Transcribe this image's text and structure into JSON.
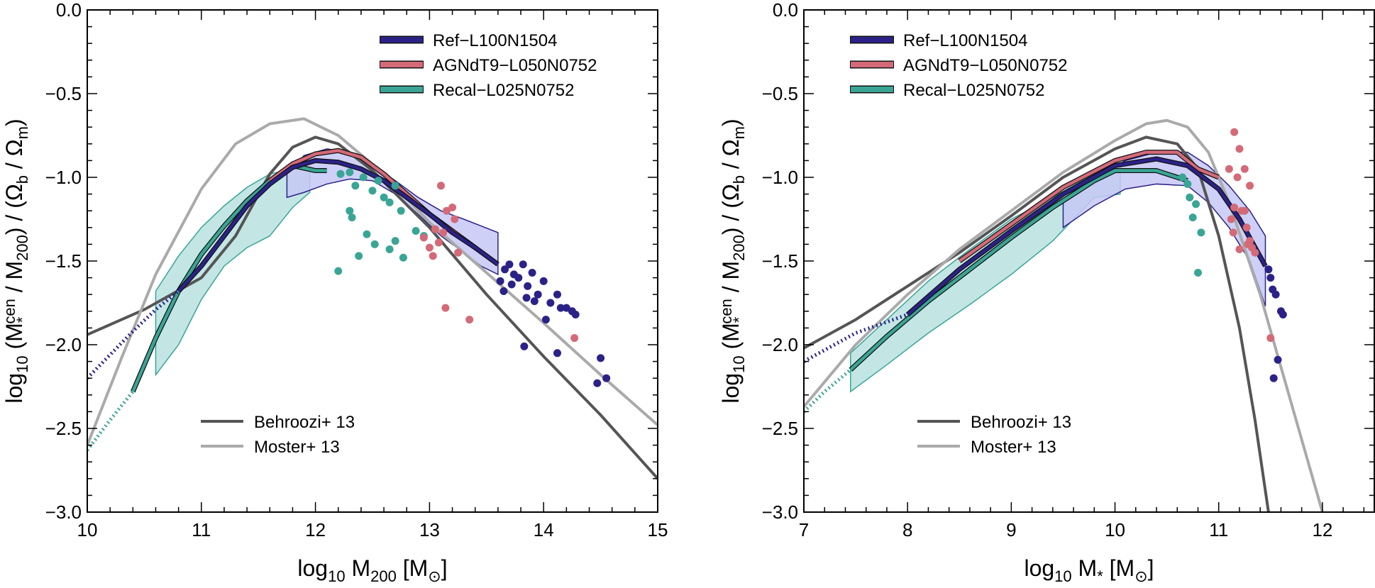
{
  "chart_data": [
    {
      "type": "line",
      "xlabel_parts": [
        "log",
        "10",
        " M",
        "200",
        " [M",
        "⊙",
        "]"
      ],
      "ylabel_parts": [
        "log",
        "10",
        " (M",
        "*",
        "cen",
        " / M",
        "200",
        ") / (Ω",
        "b",
        " / Ω",
        "m",
        ")"
      ],
      "xlim": [
        10,
        15
      ],
      "ylim": [
        -3.0,
        0.0
      ],
      "xticks": [
        10,
        11,
        12,
        13,
        14,
        15
      ],
      "xtick_labels": [
        "10",
        "11",
        "12",
        "13",
        "14",
        "15"
      ],
      "yticks": [
        0.0,
        -0.5,
        -1.0,
        -1.5,
        -2.0,
        -2.5,
        -3.0
      ],
      "ytick_labels": [
        "0.0",
        "−0.5",
        "−1.0",
        "−1.5",
        "−2.0",
        "−2.5",
        "−3.0"
      ],
      "legend_sims": [
        "Ref−L100N1504",
        "AGNdT9−L050N0752",
        "Recal−L025N0752"
      ],
      "legend_obs": [
        "Behroozi+ 13",
        "Moster+ 13"
      ],
      "colors": {
        "ref": "#2b2288",
        "agn": "#d46a78",
        "recal": "#3aa595",
        "ref_band": "#c6c8f6",
        "recal_band": "#b8e2e0",
        "behroozi": "#555555",
        "moster": "#aaaaaa"
      },
      "ref_band": {
        "x": [
          11.75,
          11.9,
          12.1,
          12.3,
          12.5,
          12.7,
          12.9,
          13.1,
          13.3,
          13.45,
          13.6
        ],
        "upper": [
          -0.98,
          -0.87,
          -0.83,
          -0.85,
          -0.93,
          -1.02,
          -1.12,
          -1.2,
          -1.25,
          -1.29,
          -1.33
        ],
        "lower": [
          -1.12,
          -1.09,
          -1.04,
          -1.01,
          -1.02,
          -1.1,
          -1.22,
          -1.35,
          -1.45,
          -1.53,
          -1.58
        ]
      },
      "recal_band": {
        "x": [
          10.6,
          10.8,
          11.0,
          11.2,
          11.4,
          11.6,
          11.8,
          11.95
        ],
        "upper": [
          -1.68,
          -1.47,
          -1.3,
          -1.17,
          -1.06,
          -0.98,
          -0.95,
          -0.94
        ],
        "lower": [
          -2.18,
          -2.0,
          -1.73,
          -1.53,
          -1.42,
          -1.35,
          -1.18,
          -1.09
        ]
      },
      "series": [
        {
          "name": "Ref−L100N1504",
          "key": "ref",
          "solid": {
            "x": [
              10.8,
              11.0,
              11.2,
              11.4,
              11.6,
              11.8,
              12.0,
              12.2,
              12.4,
              12.6,
              12.8,
              13.0,
              13.2,
              13.4,
              13.6
            ],
            "y": [
              -1.68,
              -1.53,
              -1.35,
              -1.17,
              -1.04,
              -0.94,
              -0.9,
              -0.91,
              -0.95,
              -1.02,
              -1.12,
              -1.22,
              -1.33,
              -1.42,
              -1.52
            ]
          },
          "dotted": {
            "x": [
              10.0,
              10.2,
              10.4,
              10.6,
              10.8
            ],
            "y": [
              -2.2,
              -2.06,
              -1.92,
              -1.79,
              -1.68
            ]
          },
          "points": {
            "x": [
              13.62,
              13.66,
              13.7,
              13.74,
              13.78,
              13.82,
              13.86,
              13.9,
              13.95,
              14.0,
              14.06,
              14.12,
              14.2,
              14.25,
              14.28,
              13.65,
              13.72,
              13.85,
              13.92,
              14.02,
              14.15,
              14.5,
              14.55,
              14.47,
              14.12,
              13.83
            ],
            "y": [
              -1.62,
              -1.55,
              -1.52,
              -1.58,
              -1.6,
              -1.52,
              -1.65,
              -1.57,
              -1.7,
              -1.62,
              -1.75,
              -1.7,
              -1.78,
              -1.8,
              -1.82,
              -1.68,
              -1.64,
              -1.72,
              -1.74,
              -1.85,
              -1.78,
              -2.08,
              -2.2,
              -2.23,
              -2.05,
              -2.01
            ]
          }
        },
        {
          "name": "AGNdT9−L050N0752",
          "key": "agn",
          "solid": {
            "x": [
              11.6,
              11.8,
              12.0,
              12.2,
              12.4,
              12.6,
              12.8,
              13.0,
              13.2,
              13.4
            ],
            "y": [
              -1.02,
              -0.92,
              -0.86,
              -0.84,
              -0.88,
              -0.98,
              -1.1,
              -1.22,
              -1.32,
              -1.42
            ]
          },
          "dotted": null,
          "points": {
            "x": [
              13.1,
              13.15,
              13.22,
              13.05,
              12.95,
              13.0,
              13.08,
              13.12,
              13.2,
              13.25,
              13.03,
              13.14,
              13.35,
              14.27
            ],
            "y": [
              -1.05,
              -1.2,
              -1.25,
              -1.31,
              -1.36,
              -1.42,
              -1.39,
              -1.33,
              -1.18,
              -1.45,
              -1.47,
              -1.78,
              -1.85,
              -1.96
            ]
          }
        },
        {
          "name": "Recal−L025N0752",
          "key": "recal",
          "solid": {
            "x": [
              10.4,
              10.6,
              10.8,
              11.0,
              11.2,
              11.4,
              11.6,
              11.8,
              12.0,
              12.1
            ],
            "y": [
              -2.28,
              -1.96,
              -1.68,
              -1.46,
              -1.29,
              -1.14,
              -1.02,
              -0.93,
              -0.96,
              -0.96
            ]
          },
          "dotted": {
            "x": [
              10.0,
              10.2,
              10.4
            ],
            "y": [
              -2.63,
              -2.45,
              -2.28
            ]
          },
          "points": {
            "x": [
              12.22,
              12.3,
              12.35,
              12.42,
              12.5,
              12.55,
              12.6,
              12.65,
              12.7,
              12.75,
              12.3,
              12.32,
              12.45,
              12.38,
              12.52,
              12.65,
              12.7,
              12.77,
              12.2,
              12.88,
              12.95
            ],
            "y": [
              -0.98,
              -0.97,
              -1.05,
              -1.0,
              -1.08,
              -1.02,
              -1.12,
              -1.15,
              -1.05,
              -1.2,
              -1.2,
              -1.24,
              -1.34,
              -1.47,
              -1.4,
              -1.43,
              -1.38,
              -1.48,
              -1.56,
              -1.32,
              -1.35
            ]
          }
        }
      ],
      "reference_curves": [
        {
          "name": "Behroozi+ 13",
          "key": "behroozi",
          "x": [
            10.0,
            10.5,
            11.0,
            11.3,
            11.6,
            11.8,
            12.0,
            12.2,
            12.5,
            13.0,
            13.5,
            14.0,
            14.5,
            15.0
          ],
          "y": [
            -1.94,
            -1.79,
            -1.6,
            -1.35,
            -0.98,
            -0.82,
            -0.76,
            -0.8,
            -0.96,
            -1.3,
            -1.7,
            -2.07,
            -2.42,
            -2.8
          ]
        },
        {
          "name": "Moster+ 13",
          "key": "moster",
          "x": [
            10.0,
            10.3,
            10.6,
            11.0,
            11.3,
            11.6,
            11.9,
            12.2,
            12.6,
            13.0,
            13.5,
            14.0,
            14.5,
            15.0
          ],
          "y": [
            -2.6,
            -2.08,
            -1.58,
            -1.07,
            -0.8,
            -0.68,
            -0.65,
            -0.75,
            -0.98,
            -1.27,
            -1.57,
            -1.87,
            -2.18,
            -2.48
          ]
        }
      ]
    },
    {
      "type": "line",
      "xlabel_parts": [
        "log",
        "10",
        " M",
        "*",
        " [M",
        "⊙",
        "]"
      ],
      "ylabel_parts": [
        "log",
        "10",
        " (M",
        "*",
        "cen",
        " / M",
        "200",
        ") / (Ω",
        "b",
        " / Ω",
        "m",
        ")"
      ],
      "xlim": [
        7,
        12.5
      ],
      "ylim": [
        -3.0,
        0.0
      ],
      "xticks": [
        7,
        8,
        9,
        10,
        11,
        12
      ],
      "xtick_labels": [
        "7",
        "8",
        "9",
        "10",
        "11",
        "12"
      ],
      "yticks": [
        0.0,
        -0.5,
        -1.0,
        -1.5,
        -2.0,
        -2.5,
        -3.0
      ],
      "ytick_labels": [
        "0.0",
        "−0.5",
        "−1.0",
        "−1.5",
        "−2.0",
        "−2.5",
        "−3.0"
      ],
      "legend_sims": [
        "Ref−L100N1504",
        "AGNdT9−L050N0752",
        "Recal−L025N0752"
      ],
      "legend_obs": [
        "Behroozi+ 13",
        "Moster+ 13"
      ],
      "colors": {
        "ref": "#2b2288",
        "agn": "#d46a78",
        "recal": "#3aa595",
        "ref_band": "#c6c8f6",
        "recal_band": "#b8e2e0",
        "behroozi": "#555555",
        "moster": "#aaaaaa"
      },
      "ref_band": {
        "x": [
          9.5,
          9.8,
          10.1,
          10.4,
          10.7,
          10.9,
          11.1,
          11.3,
          11.45
        ],
        "upper": [
          -1.15,
          -1.0,
          -0.9,
          -0.85,
          -0.85,
          -0.93,
          -1.05,
          -1.2,
          -1.35
        ],
        "lower": [
          -1.3,
          -1.17,
          -1.07,
          -1.04,
          -1.05,
          -1.15,
          -1.3,
          -1.5,
          -1.77
        ]
      },
      "recal_band": {
        "x": [
          7.45,
          7.8,
          8.2,
          8.6,
          9.0,
          9.4,
          9.8,
          10.05
        ],
        "upper": [
          -2.05,
          -1.85,
          -1.62,
          -1.43,
          -1.25,
          -1.12,
          -0.98,
          -0.93
        ],
        "lower": [
          -2.28,
          -2.12,
          -1.93,
          -1.76,
          -1.58,
          -1.38,
          -1.12,
          -1.1
        ]
      },
      "series": [
        {
          "name": "Ref−L100N1504",
          "key": "ref",
          "solid": {
            "x": [
              8.0,
              8.5,
              9.0,
              9.5,
              10.0,
              10.4,
              10.7,
              11.0,
              11.2,
              11.45
            ],
            "y": [
              -1.82,
              -1.55,
              -1.32,
              -1.1,
              -0.93,
              -0.89,
              -0.93,
              -1.07,
              -1.25,
              -1.53
            ]
          },
          "dotted": {
            "x": [
              7.0,
              7.5,
              8.0
            ],
            "y": [
              -2.1,
              -1.93,
              -1.82
            ]
          },
          "points": {
            "x": [
              11.48,
              11.5,
              11.52,
              11.55,
              11.6,
              11.62,
              11.57,
              11.53
            ],
            "y": [
              -1.55,
              -1.6,
              -1.67,
              -1.7,
              -1.8,
              -1.82,
              -2.09,
              -2.2
            ]
          }
        },
        {
          "name": "AGNdT9−L050N0752",
          "key": "agn",
          "solid": {
            "x": [
              8.5,
              9.0,
              9.5,
              10.0,
              10.3,
              10.6,
              10.8,
              11.0
            ],
            "y": [
              -1.5,
              -1.28,
              -1.06,
              -0.9,
              -0.85,
              -0.85,
              -0.95,
              -1.0
            ]
          },
          "dotted": null,
          "points": {
            "x": [
              11.15,
              11.2,
              11.25,
              11.3,
              11.1,
              11.18,
              11.22,
              11.12,
              11.27,
              11.14,
              11.2,
              11.3,
              11.35,
              11.25,
              11.28,
              11.32,
              11.15,
              11.5
            ],
            "y": [
              -0.73,
              -0.83,
              -0.95,
              -1.05,
              -0.95,
              -1.0,
              -1.2,
              -1.25,
              -1.3,
              -1.33,
              -1.43,
              -1.38,
              -1.45,
              -1.2,
              -1.4,
              -1.42,
              -1.18,
              -1.96
            ]
          }
        },
        {
          "name": "Recal−L025N0752",
          "key": "recal",
          "solid": {
            "x": [
              7.45,
              7.8,
              8.2,
              8.6,
              9.0,
              9.4,
              9.8,
              10.0,
              10.4,
              10.7
            ],
            "y": [
              -2.15,
              -1.95,
              -1.74,
              -1.55,
              -1.36,
              -1.18,
              -1.02,
              -0.96,
              -0.96,
              -1.02
            ]
          },
          "dotted": {
            "x": [
              7.0,
              7.2,
              7.45
            ],
            "y": [
              -2.4,
              -2.28,
              -2.15
            ]
          },
          "points": {
            "x": [
              10.65,
              10.7,
              10.72,
              10.75,
              10.78,
              10.83,
              10.8
            ],
            "y": [
              -1.0,
              -1.04,
              -1.12,
              -1.24,
              -1.16,
              -1.33,
              -1.57
            ]
          }
        }
      ],
      "reference_curves": [
        {
          "name": "Behroozi+ 13",
          "key": "behroozi",
          "x": [
            7.0,
            7.5,
            8.0,
            8.5,
            9.0,
            9.5,
            10.0,
            10.3,
            10.6,
            10.8,
            11.0,
            11.2,
            11.35,
            11.48
          ],
          "y": [
            -2.02,
            -1.85,
            -1.65,
            -1.45,
            -1.23,
            -1.0,
            -0.83,
            -0.76,
            -0.8,
            -0.95,
            -1.35,
            -1.9,
            -2.45,
            -3.0
          ]
        },
        {
          "name": "Moster+ 13",
          "key": "moster",
          "x": [
            7.0,
            7.5,
            8.0,
            8.5,
            9.0,
            9.5,
            10.0,
            10.3,
            10.5,
            10.7,
            10.9,
            11.1,
            11.4,
            11.7,
            12.0
          ],
          "y": [
            -2.37,
            -2.0,
            -1.7,
            -1.43,
            -1.2,
            -0.97,
            -0.78,
            -0.68,
            -0.66,
            -0.7,
            -0.85,
            -1.15,
            -1.7,
            -2.35,
            -3.0
          ]
        }
      ]
    }
  ]
}
